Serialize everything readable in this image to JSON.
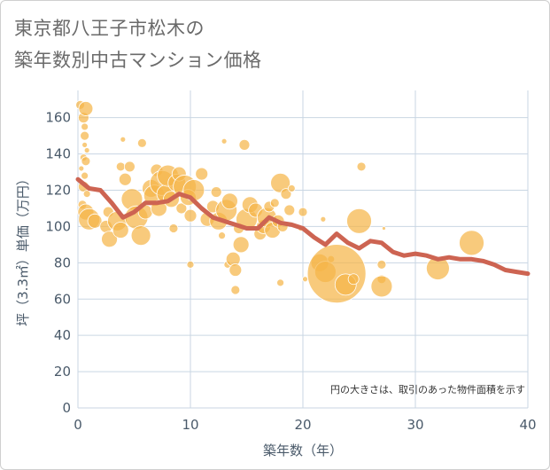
{
  "title_line1": "東京都八王子市松木の",
  "title_line2": "築年数別中古マンション価格",
  "colors": {
    "bubble": "#f5b54a",
    "line": "#cd6452",
    "grid": "#c9d6e3",
    "plot_bg": "#ffffff"
  },
  "chart_data": {
    "type": "scatter",
    "xlabel": "築年数（年）",
    "ylabel": "坪（3.3㎡）単価（万円）",
    "xlim": [
      0,
      40
    ],
    "ylim": [
      0,
      175
    ],
    "x_ticks": [
      "0",
      "10",
      "20",
      "30",
      "40"
    ],
    "x_tick_values": [
      0,
      10,
      20,
      30,
      40
    ],
    "y_ticks": [
      "0",
      "20",
      "40",
      "60",
      "80",
      "100",
      "120",
      "140",
      "160"
    ],
    "y_tick_values": [
      0,
      20,
      40,
      60,
      80,
      100,
      120,
      140,
      160
    ],
    "grid": true,
    "annotation": "円の大きさは、取引のあった物件面積を示す",
    "bubbles": [
      {
        "x": 0.2,
        "y": 167,
        "s": 5
      },
      {
        "x": 0.5,
        "y": 160,
        "s": 6
      },
      {
        "x": 0.6,
        "y": 155,
        "s": 4
      },
      {
        "x": 0.7,
        "y": 165,
        "s": 8
      },
      {
        "x": 0.6,
        "y": 150,
        "s": 5
      },
      {
        "x": 0.6,
        "y": 145,
        "s": 3
      },
      {
        "x": 0.8,
        "y": 142,
        "s": 3
      },
      {
        "x": 0.5,
        "y": 138,
        "s": 4
      },
      {
        "x": 0.7,
        "y": 136,
        "s": 5
      },
      {
        "x": 0.3,
        "y": 132,
        "s": 3
      },
      {
        "x": 0.6,
        "y": 128,
        "s": 4
      },
      {
        "x": 0.5,
        "y": 122,
        "s": 6
      },
      {
        "x": 0.8,
        "y": 118,
        "s": 4
      },
      {
        "x": 0.4,
        "y": 112,
        "s": 5
      },
      {
        "x": 0.7,
        "y": 108,
        "s": 9
      },
      {
        "x": 1.0,
        "y": 104,
        "s": 12
      },
      {
        "x": 1.5,
        "y": 103,
        "s": 8
      },
      {
        "x": 2.5,
        "y": 100,
        "s": 7
      },
      {
        "x": 2.7,
        "y": 108,
        "s": 6
      },
      {
        "x": 2.8,
        "y": 93,
        "s": 9
      },
      {
        "x": 3.5,
        "y": 103,
        "s": 11
      },
      {
        "x": 3.8,
        "y": 98,
        "s": 9
      },
      {
        "x": 3.8,
        "y": 133,
        "s": 5
      },
      {
        "x": 4.0,
        "y": 148,
        "s": 3
      },
      {
        "x": 4.2,
        "y": 126,
        "s": 7
      },
      {
        "x": 4.6,
        "y": 133,
        "s": 6
      },
      {
        "x": 4.8,
        "y": 115,
        "s": 12
      },
      {
        "x": 5.2,
        "y": 105,
        "s": 13
      },
      {
        "x": 5.6,
        "y": 95,
        "s": 11
      },
      {
        "x": 5.7,
        "y": 146,
        "s": 5
      },
      {
        "x": 6.0,
        "y": 108,
        "s": 8
      },
      {
        "x": 6.5,
        "y": 121,
        "s": 10
      },
      {
        "x": 6.8,
        "y": 117,
        "s": 12
      },
      {
        "x": 7.0,
        "y": 131,
        "s": 7
      },
      {
        "x": 7.2,
        "y": 110,
        "s": 9
      },
      {
        "x": 7.5,
        "y": 124,
        "s": 14
      },
      {
        "x": 7.8,
        "y": 118,
        "s": 10
      },
      {
        "x": 8.0,
        "y": 128,
        "s": 12
      },
      {
        "x": 8.3,
        "y": 115,
        "s": 9
      },
      {
        "x": 8.5,
        "y": 99,
        "s": 5
      },
      {
        "x": 8.8,
        "y": 124,
        "s": 10
      },
      {
        "x": 9.0,
        "y": 129,
        "s": 8
      },
      {
        "x": 9.2,
        "y": 110,
        "s": 6
      },
      {
        "x": 9.5,
        "y": 122,
        "s": 13
      },
      {
        "x": 9.8,
        "y": 116,
        "s": 9
      },
      {
        "x": 10.0,
        "y": 106,
        "s": 7
      },
      {
        "x": 10.0,
        "y": 79,
        "s": 4
      },
      {
        "x": 10.3,
        "y": 120,
        "s": 12
      },
      {
        "x": 11.0,
        "y": 129,
        "s": 7
      },
      {
        "x": 11.5,
        "y": 104,
        "s": 8
      },
      {
        "x": 12.0,
        "y": 111,
        "s": 7
      },
      {
        "x": 12.3,
        "y": 119,
        "s": 6
      },
      {
        "x": 12.5,
        "y": 103,
        "s": 10
      },
      {
        "x": 12.8,
        "y": 95,
        "s": 4
      },
      {
        "x": 13.0,
        "y": 147,
        "s": 3
      },
      {
        "x": 13.2,
        "y": 109,
        "s": 12
      },
      {
        "x": 13.3,
        "y": 79,
        "s": 4
      },
      {
        "x": 13.5,
        "y": 114,
        "s": 9
      },
      {
        "x": 13.8,
        "y": 82,
        "s": 8
      },
      {
        "x": 14.0,
        "y": 76,
        "s": 7
      },
      {
        "x": 14.0,
        "y": 65,
        "s": 5
      },
      {
        "x": 14.3,
        "y": 99,
        "s": 6
      },
      {
        "x": 14.5,
        "y": 90,
        "s": 9
      },
      {
        "x": 14.8,
        "y": 145,
        "s": 6
      },
      {
        "x": 15.0,
        "y": 104,
        "s": 12
      },
      {
        "x": 15.3,
        "y": 112,
        "s": 9
      },
      {
        "x": 15.8,
        "y": 109,
        "s": 8
      },
      {
        "x": 16.2,
        "y": 96,
        "s": 7
      },
      {
        "x": 16.5,
        "y": 100,
        "s": 8
      },
      {
        "x": 16.8,
        "y": 105,
        "s": 11
      },
      {
        "x": 17.0,
        "y": 111,
        "s": 6
      },
      {
        "x": 17.3,
        "y": 98,
        "s": 9
      },
      {
        "x": 17.5,
        "y": 113,
        "s": 5
      },
      {
        "x": 17.8,
        "y": 103,
        "s": 7
      },
      {
        "x": 18.0,
        "y": 124,
        "s": 11
      },
      {
        "x": 18.2,
        "y": 100,
        "s": 6
      },
      {
        "x": 18.5,
        "y": 118,
        "s": 6
      },
      {
        "x": 18.0,
        "y": 69,
        "s": 4
      },
      {
        "x": 18.8,
        "y": 109,
        "s": 6
      },
      {
        "x": 19.0,
        "y": 121,
        "s": 4
      },
      {
        "x": 20.0,
        "y": 108,
        "s": 5
      },
      {
        "x": 19.8,
        "y": 99,
        "s": 3
      },
      {
        "x": 20.2,
        "y": 71,
        "s": 3
      },
      {
        "x": 21.5,
        "y": 80,
        "s": 10
      },
      {
        "x": 21.8,
        "y": 104,
        "s": 3
      },
      {
        "x": 22.0,
        "y": 75,
        "s": 12
      },
      {
        "x": 22.5,
        "y": 82,
        "s": 4
      },
      {
        "x": 23.0,
        "y": 74,
        "s": 33
      },
      {
        "x": 23.8,
        "y": 68,
        "s": 12
      },
      {
        "x": 24.5,
        "y": 71,
        "s": 6
      },
      {
        "x": 25.0,
        "y": 103,
        "s": 14
      },
      {
        "x": 25.2,
        "y": 133,
        "s": 5
      },
      {
        "x": 27.0,
        "y": 79,
        "s": 5
      },
      {
        "x": 27.0,
        "y": 71,
        "s": 5
      },
      {
        "x": 27.0,
        "y": 67,
        "s": 12
      },
      {
        "x": 27.2,
        "y": 99,
        "s": 2
      },
      {
        "x": 32.0,
        "y": 77,
        "s": 13
      },
      {
        "x": 35.0,
        "y": 91,
        "s": 14
      }
    ],
    "series": [
      {
        "x": [
          0,
          1,
          2,
          3,
          4,
          5,
          6,
          7,
          8,
          9,
          10,
          11,
          12,
          13,
          14,
          15,
          16,
          17,
          18,
          19,
          20,
          21,
          22,
          23,
          24,
          25,
          26,
          27,
          28,
          29,
          30,
          31,
          32,
          33,
          34,
          35,
          36,
          37,
          38,
          39,
          40
        ],
        "y": [
          126,
          121,
          120,
          113,
          105,
          108,
          113,
          113,
          114,
          118,
          116,
          110,
          105,
          103,
          101,
          99,
          99,
          105,
          102,
          101,
          99,
          94,
          90,
          96,
          91,
          88,
          92,
          91,
          86,
          84,
          85,
          84,
          82,
          83,
          82,
          82,
          81,
          79,
          76,
          75,
          74
        ]
      }
    ]
  }
}
